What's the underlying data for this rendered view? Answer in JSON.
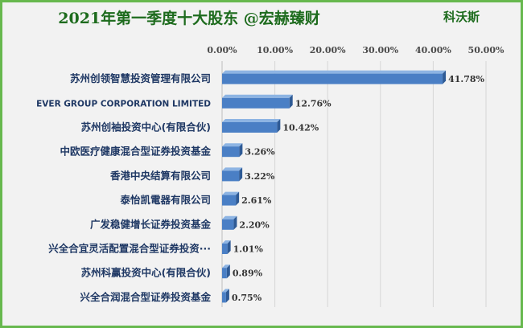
{
  "chart_data": {
    "type": "bar",
    "orientation": "horizontal",
    "title": "2021年第一季度十大股东 @宏赫臻财",
    "brand": "科沃斯",
    "categories": [
      "苏州创领智慧投资管理有限公司",
      "EVER GROUP CORPORATION LIMITED",
      "苏州创袖投资中心(有限合伙)",
      "中欧医疗健康混合型证券投资基金",
      "香港中央结算有限公司",
      "泰怡凯電器有限公司",
      "广发稳健增长证券投资基金",
      "兴全合宜灵活配置混合型证券投资···",
      "苏州科赢投资中心(有限合伙)",
      "兴全合润混合型证券投资基金"
    ],
    "values": [
      41.78,
      12.76,
      10.42,
      3.26,
      3.22,
      2.61,
      2.2,
      1.01,
      0.89,
      0.75
    ],
    "value_labels": [
      "41.78%",
      "12.76%",
      "10.42%",
      "3.26%",
      "3.22%",
      "2.61%",
      "2.20%",
      "1.01%",
      "0.89%",
      "0.75%"
    ],
    "xlim": [
      0,
      50
    ],
    "ticks": [
      0,
      10,
      20,
      30,
      40,
      50
    ],
    "tick_labels": [
      "0.00%",
      "10.00%",
      "20.00%",
      "30.00%",
      "40.00%",
      "50.00%"
    ],
    "axis_position": "top",
    "grid": true,
    "legend": "none",
    "colors": {
      "bar": "#4a7fc5",
      "bar_top": "#8db4e3",
      "bar_side": "#2e5a95",
      "grid": "#d6d6d6"
    }
  }
}
